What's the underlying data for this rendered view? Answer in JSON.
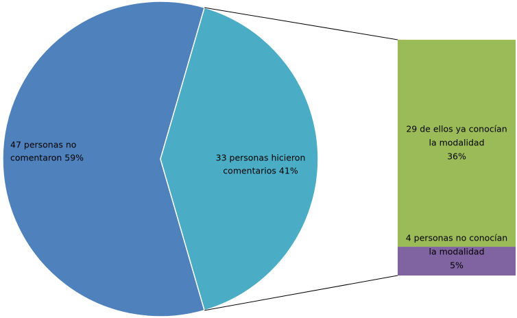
{
  "chart_data": {
    "type": "pie",
    "values": [
      59,
      41
    ],
    "value_labels": [
      [
        "47 personas no",
        "comentaron  59%"
      ],
      [
        "33 personas hicieron",
        "comentarios 41%"
      ]
    ],
    "colors": [
      "#4f81bd",
      "#4bacc6"
    ],
    "bar": {
      "values": [
        36,
        5
      ],
      "value_labels": [
        [
          "29 de ellos ya conocían",
          "la modalidad",
          "36%"
        ],
        [
          "4 personas no conocían",
          "la modalidad",
          "5%"
        ]
      ],
      "colors": [
        "#9bbb59",
        "#8064a2"
      ]
    }
  }
}
